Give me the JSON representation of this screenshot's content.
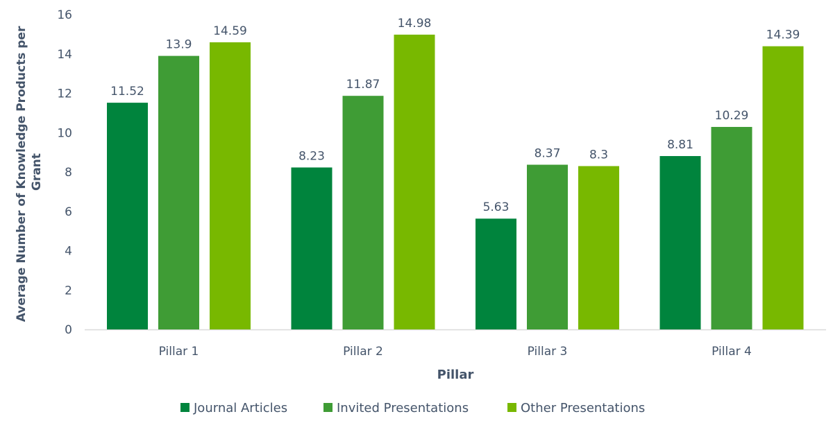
{
  "chart_data": {
    "type": "bar",
    "categories": [
      "Pillar 1",
      "Pillar 2",
      "Pillar 3",
      "Pillar 4"
    ],
    "series": [
      {
        "name": "Journal Articles",
        "values": [
          11.52,
          8.23,
          5.63,
          8.81
        ],
        "color": "#00843D"
      },
      {
        "name": "Invited Presentations",
        "values": [
          13.9,
          11.87,
          8.37,
          10.29
        ],
        "color": "#3F9C35"
      },
      {
        "name": "Other Presentations",
        "values": [
          14.59,
          14.98,
          8.3,
          14.39
        ],
        "color": "#78B800"
      }
    ],
    "data_labels": [
      [
        "11.52",
        "8.23",
        "5.63",
        "8.81"
      ],
      [
        "13.9",
        "11.87",
        "8.37",
        "10.29"
      ],
      [
        "14.59",
        "14.98",
        "8.3",
        "14.39"
      ]
    ],
    "title": "",
    "xlabel": "Pillar",
    "ylabel": "Average Number of Knowledge Products per Grant",
    "ylim": [
      0,
      16
    ],
    "yticks": [
      "0",
      "2",
      "4",
      "6",
      "8",
      "10",
      "12",
      "14",
      "16"
    ],
    "grid": false,
    "legend": "bottom",
    "text_color": "#44546A"
  }
}
